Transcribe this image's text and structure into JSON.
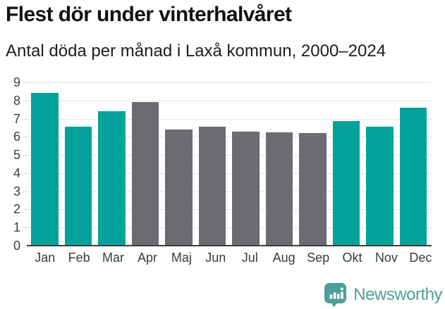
{
  "header": {
    "title": "Flest dör under vinterhalvåret",
    "subtitle": "Antal döda per månad i Laxå kommun, 2000–2024"
  },
  "chart_data": {
    "type": "bar",
    "title": "Flest dör under vinterhalvåret",
    "subtitle": "Antal döda per månad i Laxå kommun, 2000–2024",
    "categories": [
      "Jan",
      "Feb",
      "Mar",
      "Apr",
      "Maj",
      "Jun",
      "Jul",
      "Aug",
      "Sep",
      "Okt",
      "Nov",
      "Dec"
    ],
    "values": [
      8.4,
      6.55,
      7.4,
      7.9,
      6.4,
      6.55,
      6.3,
      6.25,
      6.2,
      6.85,
      6.55,
      7.6
    ],
    "point_groups": [
      "winter",
      "winter",
      "winter",
      "summer",
      "summer",
      "summer",
      "summer",
      "summer",
      "summer",
      "winter",
      "winter",
      "winter"
    ],
    "colors": {
      "winter": "#00a29a",
      "summer": "#6b6b71"
    },
    "xlabel": "",
    "ylabel": "",
    "ylim": [
      0,
      9
    ],
    "yticks": [
      0,
      1,
      2,
      3,
      4,
      5,
      6,
      7,
      8,
      9
    ],
    "grid": "horizontal",
    "gridline_color": "#e4e4e4",
    "axis_color": "#3d3d3d",
    "legend": "none"
  },
  "footer": {
    "brand": "Newsworthy",
    "logo_icon": "newsworthy-pin-barchart-icon",
    "brand_color": "#4f9e99"
  }
}
